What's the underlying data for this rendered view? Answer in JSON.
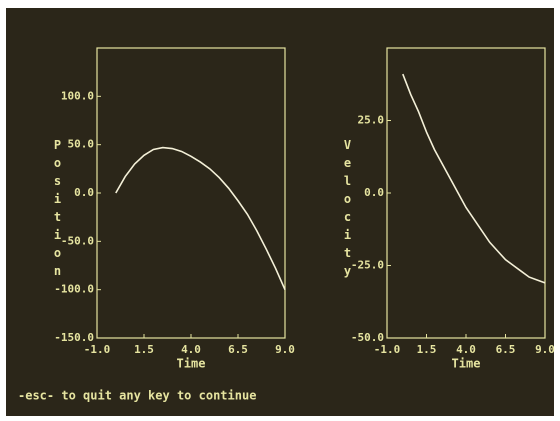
{
  "chart_data": [
    {
      "type": "line",
      "ylabel": "Position",
      "xlabel": "Time",
      "color": "#f4f0d8",
      "x": [
        0,
        0.5,
        1,
        1.5,
        2,
        2.5,
        3,
        3.5,
        4,
        4.5,
        5,
        5.5,
        6,
        6.5,
        7,
        7.5,
        8,
        8.5,
        9
      ],
      "values": [
        0,
        17,
        30,
        39,
        45,
        47,
        46,
        43,
        38,
        32,
        25,
        16,
        5,
        -8,
        -22,
        -39,
        -58,
        -78,
        -100
      ],
      "xlim": [
        -1,
        9
      ],
      "ylim": [
        -150,
        150
      ],
      "xticks": [
        {
          "value": -1,
          "label": "-1.0"
        },
        {
          "value": 1.5,
          "label": "1.5"
        },
        {
          "value": 4,
          "label": "4.0"
        },
        {
          "value": 6.5,
          "label": "6.5"
        },
        {
          "value": 9,
          "label": "9.0"
        }
      ],
      "yticks": [
        {
          "value": -150,
          "label": "-150.0"
        },
        {
          "value": -100,
          "label": "-100.0"
        },
        {
          "value": -50,
          "label": "-50.0"
        },
        {
          "value": 0,
          "label": "0.0"
        },
        {
          "value": 50,
          "label": "50.0"
        },
        {
          "value": 100,
          "label": "100.0"
        }
      ]
    },
    {
      "type": "line",
      "ylabel": "Velocity",
      "xlabel": "Time",
      "color": "#f4f0d8",
      "x": [
        0,
        0.5,
        1,
        1.5,
        2,
        2.5,
        3,
        3.5,
        4,
        4.5,
        5,
        5.5,
        6,
        6.5,
        7,
        7.5,
        8,
        8.5,
        9
      ],
      "values": [
        41,
        34,
        28,
        21,
        15,
        10,
        5,
        0,
        -5,
        -9,
        -13,
        -17,
        -20,
        -23,
        -25,
        -27,
        -29,
        -30,
        -31
      ],
      "xlim": [
        -1,
        9
      ],
      "ylim": [
        -50,
        50
      ],
      "xticks": [
        {
          "value": -1,
          "label": "-1.0"
        },
        {
          "value": 1.5,
          "label": "1.5"
        },
        {
          "value": 4,
          "label": "4.0"
        },
        {
          "value": 6.5,
          "label": "6.5"
        },
        {
          "value": 9,
          "label": "9.0"
        }
      ],
      "yticks": [
        {
          "value": -50,
          "label": "-50.0"
        },
        {
          "value": -25,
          "label": "-25.0"
        },
        {
          "value": 0,
          "label": "0.0"
        },
        {
          "value": 25,
          "label": "25.0"
        }
      ]
    }
  ],
  "footer": "-esc- to quit  any key to continue"
}
